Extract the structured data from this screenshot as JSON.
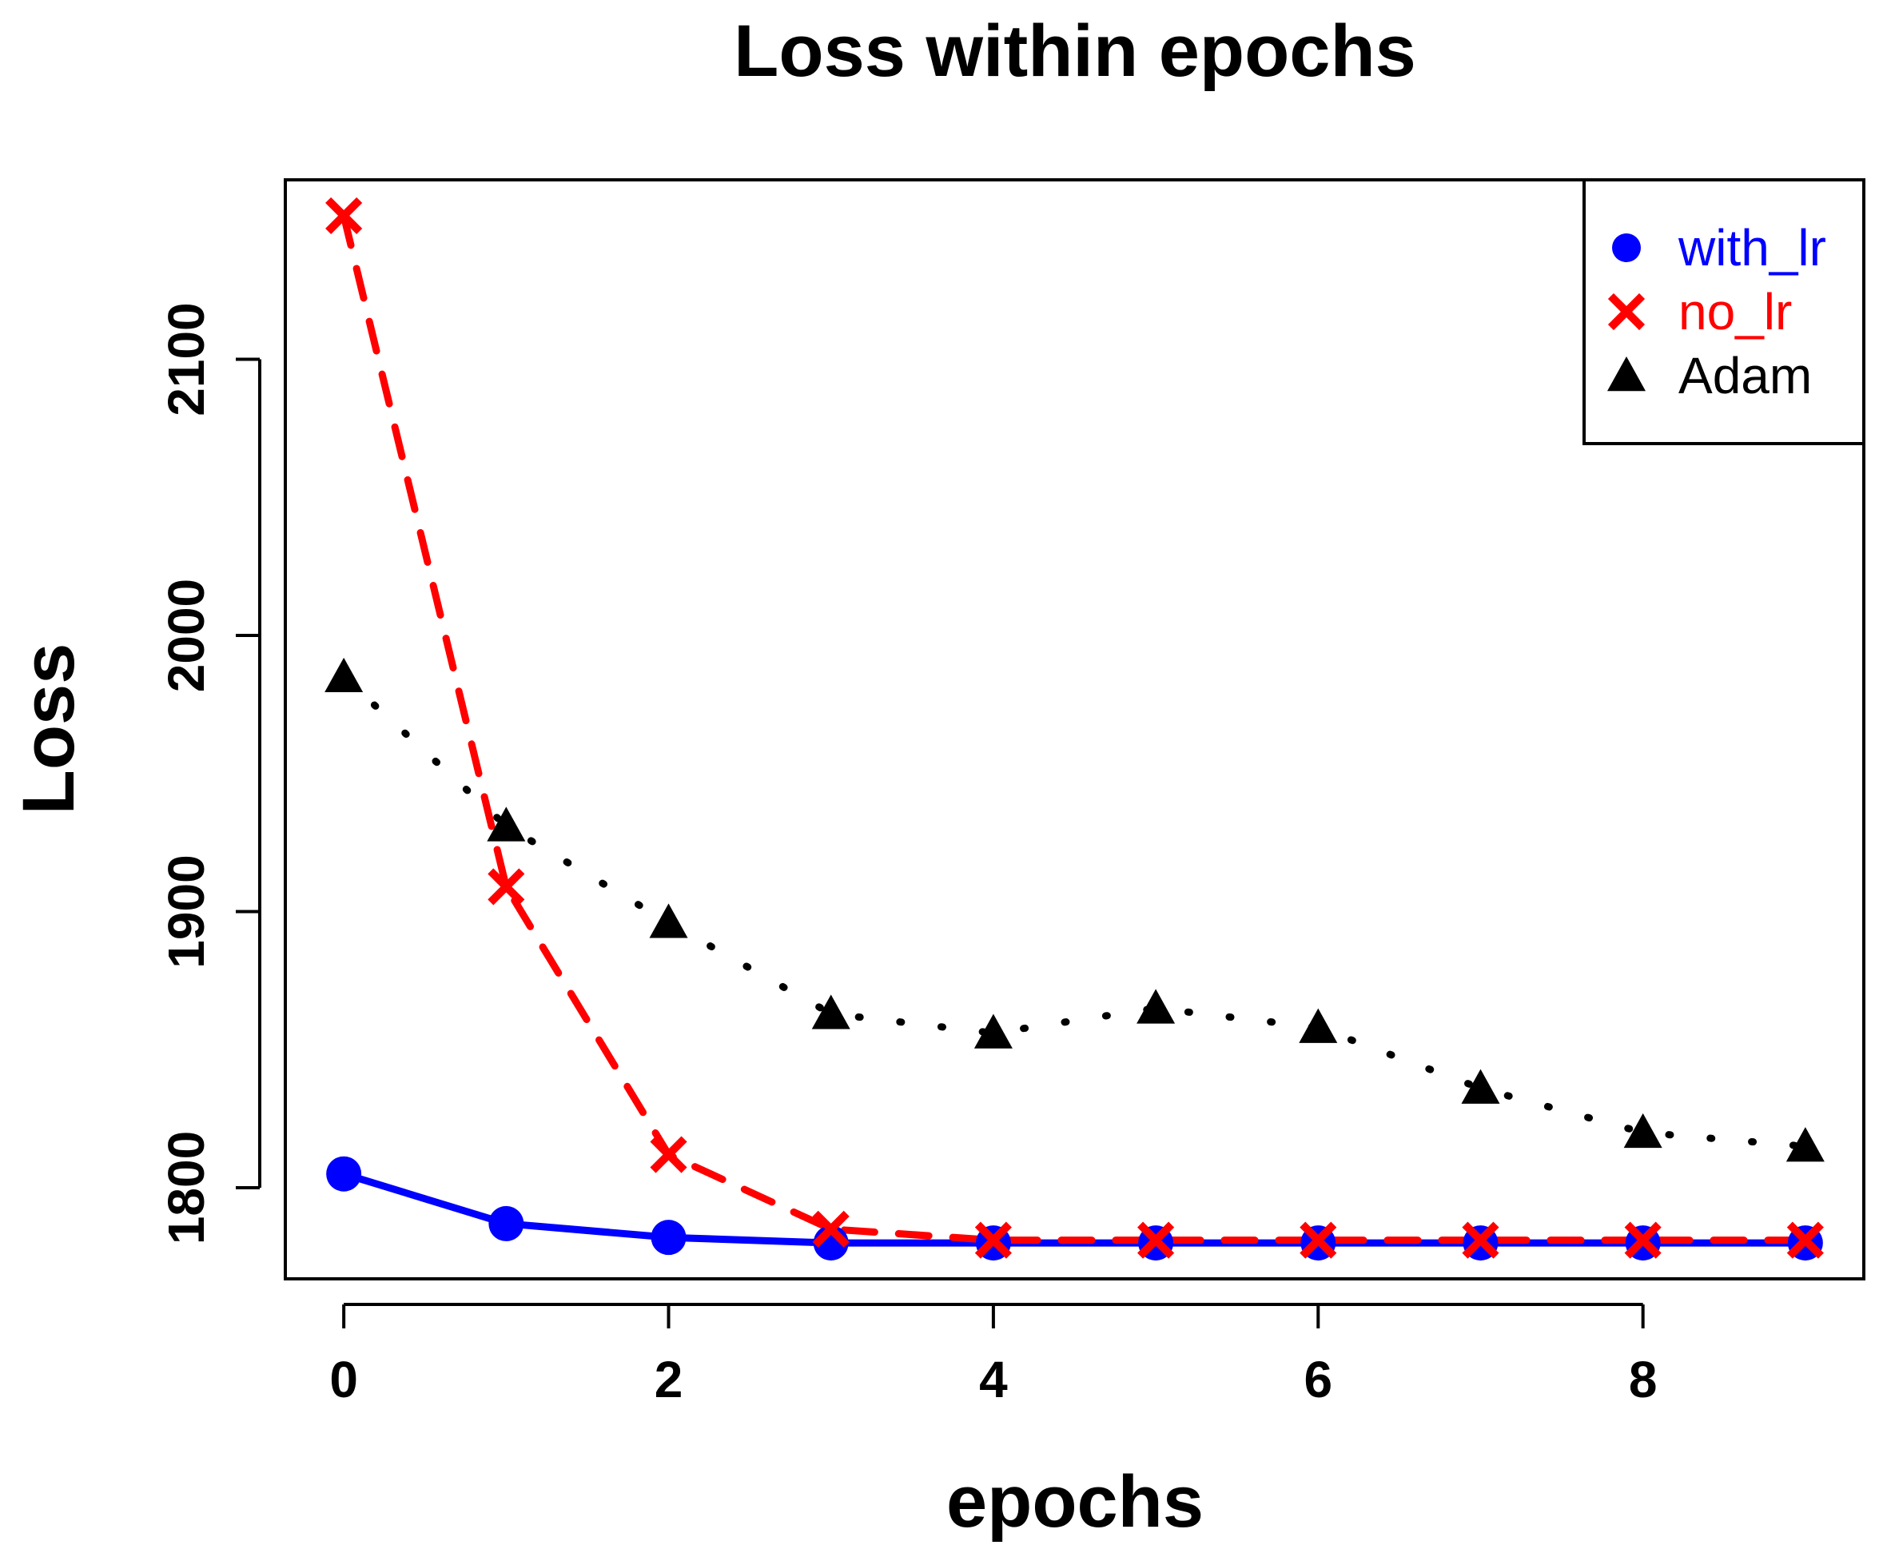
{
  "chart_data": {
    "type": "line",
    "title": "Loss within epochs",
    "xlabel": "epochs",
    "ylabel": "Loss",
    "xlim": [
      -0.36,
      9.36
    ],
    "ylim": [
      1767,
      2165
    ],
    "xticks": [
      0,
      2,
      4,
      6,
      8
    ],
    "yticks": [
      1800,
      1900,
      2000,
      2100
    ],
    "x": [
      0,
      1,
      2,
      3,
      4,
      5,
      6,
      7,
      8,
      9
    ],
    "legend_position": "top-right",
    "series": [
      {
        "name": "with_lr",
        "color": "#0000ff",
        "marker": "circle",
        "line": "solid",
        "values": [
          1805,
          1787,
          1782,
          1780,
          1780,
          1780,
          1780,
          1780,
          1780,
          1780
        ]
      },
      {
        "name": "no_lr",
        "color": "#ff0000",
        "marker": "cross",
        "line": "dashed",
        "values": [
          2152,
          1909,
          1812,
          1785,
          1781,
          1781,
          1781,
          1781,
          1781,
          1781
        ]
      },
      {
        "name": "Adam",
        "color": "#000000",
        "marker": "triangle",
        "line": "dotted",
        "values": [
          1985,
          1931,
          1896,
          1863,
          1856,
          1865,
          1858,
          1836,
          1820,
          1815
        ]
      }
    ]
  }
}
